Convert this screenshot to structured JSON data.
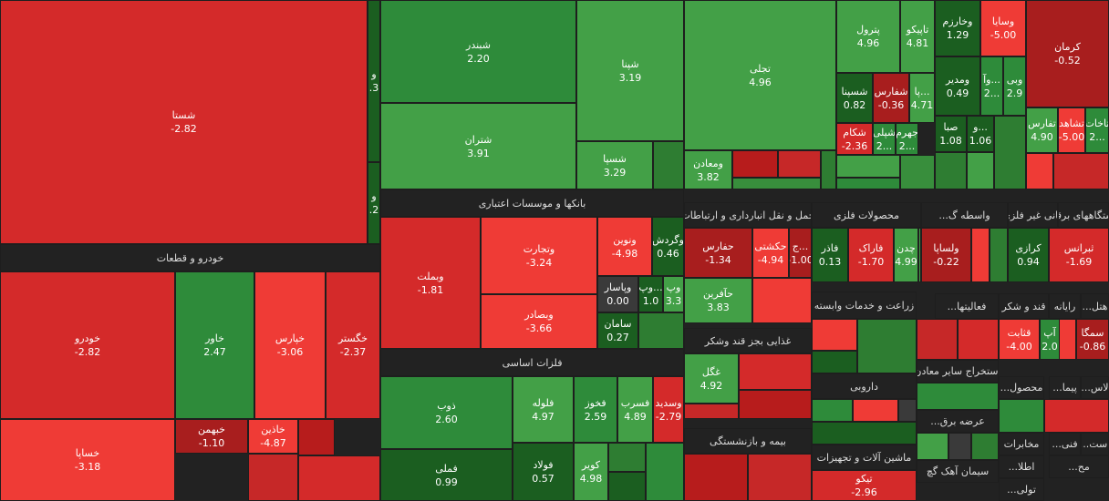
{
  "headers": [
    "خودرو و قطعات",
    "بانکها و موسسات اعتباری",
    "فلزات اساسی",
    "حمل و نقل انبارداری و ارتباطات",
    "محصولات فلزی",
    "واسطه گ...",
    "دستگاههای برقی",
    "کانی غیر فلزی",
    "غذایی بجز قند وشکر",
    "زراعت و خدمات وابسته",
    "فعالیتها...",
    "قند و شکر",
    "رایانه",
    "هتل...",
    "استخراج سایر معادن",
    "داروبی",
    "محصول...",
    "پیما...",
    "لاس...",
    "بیمه و بازنشستگی",
    "عرضه برق...",
    "مخابرات",
    "فنی...",
    "است...",
    "ماشین آلات و تجهیزات",
    "سیمان آهک گچ",
    "اطلا...",
    "مح...",
    "تولی..."
  ],
  "tiles": [
    {
      "symbol": "شستا",
      "change": "-2.82"
    },
    {
      "symbol": "خودرو",
      "change": "-2.82"
    },
    {
      "symbol": "خاور",
      "change": "2.47"
    },
    {
      "symbol": "خپارس",
      "change": "-3.06"
    },
    {
      "symbol": "خگستر",
      "change": "-2.37"
    },
    {
      "symbol": "خساپا",
      "change": "-3.18"
    },
    {
      "symbol": "خبهمن",
      "change": "-1.10"
    },
    {
      "symbol": "خاذین",
      "change": "-4.87"
    },
    {
      "symbol": "و",
      "change": ".3"
    },
    {
      "symbol": "و",
      "change": ".2"
    },
    {
      "symbol": "شبندر",
      "change": "2.20"
    },
    {
      "symbol": "شپنا",
      "change": "3.19"
    },
    {
      "symbol": "شتران",
      "change": "3.91"
    },
    {
      "symbol": "شسپا",
      "change": "3.29"
    },
    {
      "symbol": "وبملت",
      "change": "-1.81"
    },
    {
      "symbol": "وتجارت",
      "change": "-3.24"
    },
    {
      "symbol": "وبصادر",
      "change": "-3.66"
    },
    {
      "symbol": "ونوین",
      "change": "-4.98"
    },
    {
      "symbol": "وگردش",
      "change": "0.46"
    },
    {
      "symbol": "وپاسار",
      "change": "0.00"
    },
    {
      "symbol": "سامان",
      "change": "0.27"
    },
    {
      "symbol": "وپ...",
      "change": "1.0"
    },
    {
      "symbol": "وپ",
      "change": "3.3"
    },
    {
      "symbol": "ذوب",
      "change": "2.60"
    },
    {
      "symbol": "فملی",
      "change": "0.99"
    },
    {
      "symbol": "فلوله",
      "change": "4.97"
    },
    {
      "symbol": "فولاد",
      "change": "0.57"
    },
    {
      "symbol": "فخوز",
      "change": "2.59"
    },
    {
      "symbol": "فسرب",
      "change": "4.89"
    },
    {
      "symbol": "وسدید",
      "change": "-2.79"
    },
    {
      "symbol": "کویر",
      "change": "4.98"
    },
    {
      "symbol": "تجلی",
      "change": "4.96"
    },
    {
      "symbol": "ومعادن",
      "change": "3.82"
    },
    {
      "symbol": "حفارس",
      "change": "-1.34"
    },
    {
      "symbol": "حآفرین",
      "change": "3.83"
    },
    {
      "symbol": "حکشتی",
      "change": "-4.94"
    },
    {
      "symbol": "ج...",
      "change": "-1.00"
    },
    {
      "symbol": "غگل",
      "change": "4.92"
    },
    {
      "symbol": "پترول",
      "change": "4.96"
    },
    {
      "symbol": "تاپیکو",
      "change": "4.81"
    },
    {
      "symbol": "شسپنا",
      "change": "0.82"
    },
    {
      "symbol": "شفارس",
      "change": "-0.36"
    },
    {
      "symbol": "پا...",
      "change": "4.71"
    },
    {
      "symbol": "شکام",
      "change": "-2.36"
    },
    {
      "symbol": "شپلی",
      "change": "2..."
    },
    {
      "symbol": "جهرم",
      "change": "2..."
    },
    {
      "symbol": "فاذر",
      "change": "0.13"
    },
    {
      "symbol": "فاراک",
      "change": "-1.70"
    },
    {
      "symbol": "چدن",
      "change": "4.99"
    },
    {
      "symbol": "تیکو",
      "change": "-2.96"
    },
    {
      "symbol": "وخارزم",
      "change": "1.29"
    },
    {
      "symbol": "وسایا",
      "change": "-5.00"
    },
    {
      "symbol": "ومدیر",
      "change": "0.49"
    },
    {
      "symbol": "وآ...",
      "change": "2..."
    },
    {
      "symbol": "وبی",
      "change": "2.9"
    },
    {
      "symbol": "صبا",
      "change": "1.08"
    },
    {
      "symbol": "و...",
      "change": "1.06"
    },
    {
      "symbol": "ولساپا",
      "change": "-0.22"
    },
    {
      "symbol": "کرمان",
      "change": "-0.52"
    },
    {
      "symbol": "تفارس",
      "change": "4.90"
    },
    {
      "symbol": "تشاهد",
      "change": "-5.00"
    },
    {
      "symbol": "تاخات",
      "change": "2..."
    },
    {
      "symbol": "کرازی",
      "change": "0.94"
    },
    {
      "symbol": "ثبرانس",
      "change": "-1.69"
    },
    {
      "symbol": "قثابت",
      "change": "-4.00"
    },
    {
      "symbol": "آپ",
      "change": "2.0"
    },
    {
      "symbol": "سمگا",
      "change": "-0.86"
    }
  ]
}
